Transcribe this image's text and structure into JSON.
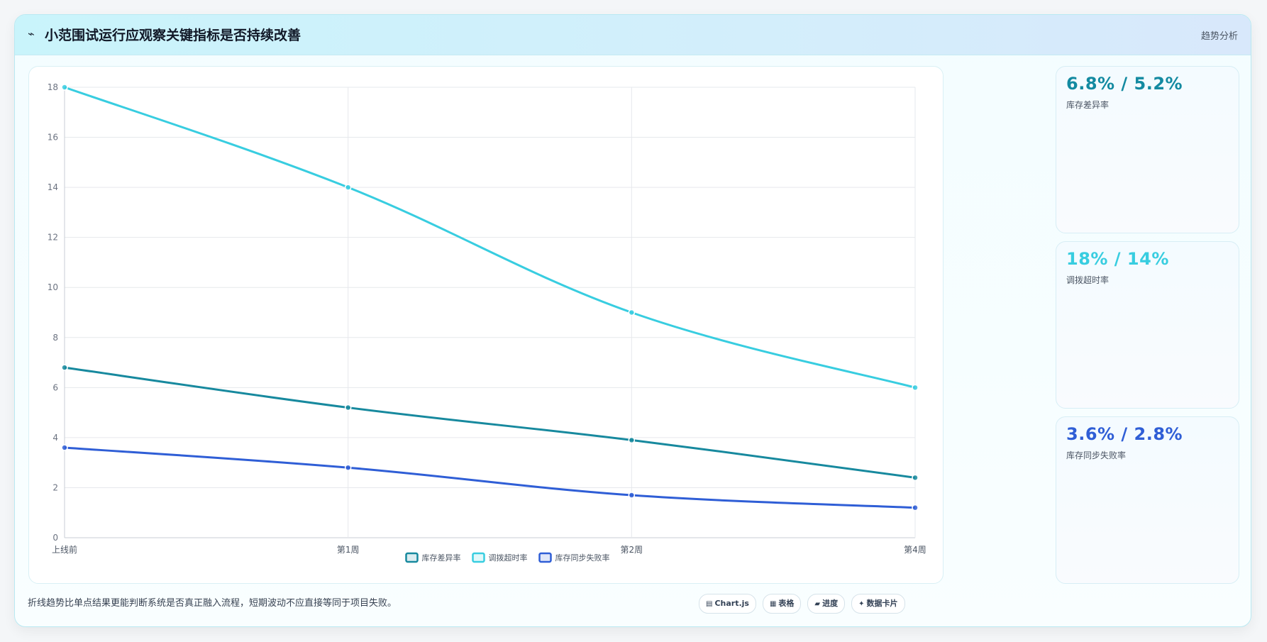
{
  "header": {
    "icon": "trend-line-icon",
    "title": "小范围试运行应观察关键指标是否持续改善",
    "tag": "趋势分析"
  },
  "chart_data": {
    "type": "line",
    "categories": [
      "上线前",
      "第1周",
      "第2周",
      "第4周"
    ],
    "series": [
      {
        "name": "库存差异率",
        "values": [
          6.8,
          5.2,
          3.9,
          2.4
        ],
        "color": "#17899e"
      },
      {
        "name": "调拨超时率",
        "values": [
          18,
          14,
          9,
          6
        ],
        "color": "#38cde0"
      },
      {
        "name": "库存同步失败率",
        "values": [
          3.6,
          2.8,
          1.7,
          1.2
        ],
        "color": "#2f5ed6"
      }
    ],
    "ylim": [
      0,
      18
    ],
    "yticks": [
      0,
      2,
      4,
      6,
      8,
      10,
      12,
      14,
      16,
      18
    ],
    "grid": true,
    "legend": "bottom"
  },
  "kpis": [
    {
      "value": "6.8% / 5.2%",
      "label": "库存差异率",
      "color": "#138aa1"
    },
    {
      "value": "18% / 14%",
      "label": "调拨超时率",
      "color": "#38cde0"
    },
    {
      "value": "3.6% / 2.8%",
      "label": "库存同步失败率",
      "color": "#2f5ed6"
    }
  ],
  "footnote": "折线趋势比单点结果更能判断系统是否真正融入流程，短期波动不应直接等同于项目失败。",
  "chips": [
    {
      "icon": "chart-icon",
      "glyph": "▤",
      "label": "Chart.js"
    },
    {
      "icon": "table-icon",
      "glyph": "▦",
      "label": "表格"
    },
    {
      "icon": "progress-icon",
      "glyph": "▰",
      "label": "进度"
    },
    {
      "icon": "card-icon",
      "glyph": "✦",
      "label": "数据卡片"
    }
  ]
}
